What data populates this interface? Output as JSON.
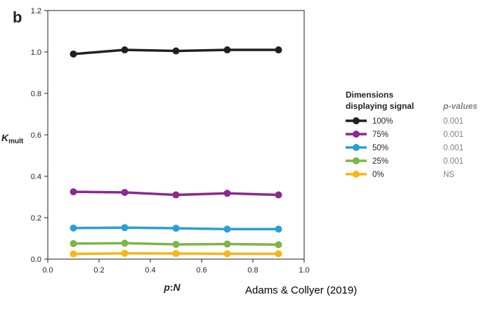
{
  "panel_label": "b",
  "credit": "Adams & Collyer (2019)",
  "chart_data": {
    "type": "line",
    "xlabel_main": "p",
    "xlabel_sep": ":",
    "xlabel_tail": "N",
    "ylabel_main": "K",
    "ylabel_sub": "mult",
    "xlim": [
      0.0,
      1.0
    ],
    "ylim": [
      0.0,
      1.2
    ],
    "xticks": [
      "0.0",
      "0.2",
      "0.4",
      "0.6",
      "0.8",
      "1.0"
    ],
    "yticks": [
      "0.0",
      "0.2",
      "0.4",
      "0.6",
      "0.8",
      "1.0",
      "1.2"
    ],
    "x": [
      0.1,
      0.3,
      0.5,
      0.7,
      0.9
    ],
    "legend": {
      "title_line1": "Dimensions",
      "title_line2": "displaying signal",
      "pvalues_title": "p-values",
      "placement": "right"
    },
    "series": [
      {
        "name": "100%",
        "pvalue": "0.001",
        "color": "#231f20",
        "values": [
          0.99,
          1.01,
          1.005,
          1.01,
          1.01
        ]
      },
      {
        "name": "75%",
        "pvalue": "0.001",
        "color": "#8b2a8c",
        "values": [
          0.325,
          0.322,
          0.31,
          0.318,
          0.31
        ]
      },
      {
        "name": "50%",
        "pvalue": "0.001",
        "color": "#2a9fd6",
        "values": [
          0.15,
          0.152,
          0.149,
          0.145,
          0.145
        ]
      },
      {
        "name": "25%",
        "pvalue": "0.001",
        "color": "#7ab648",
        "values": [
          0.075,
          0.077,
          0.071,
          0.073,
          0.07
        ]
      },
      {
        "name": "0%",
        "pvalue": "NS",
        "color": "#f7b516",
        "values": [
          0.025,
          0.028,
          0.027,
          0.026,
          0.026
        ]
      }
    ]
  }
}
